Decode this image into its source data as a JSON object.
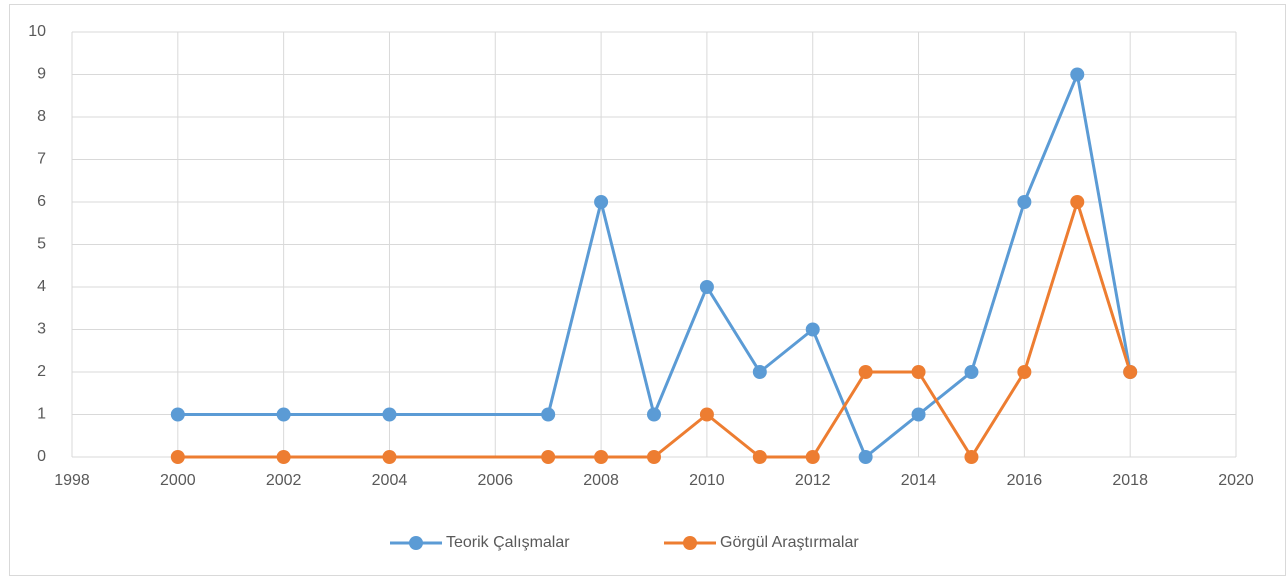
{
  "chart_data": {
    "type": "line",
    "x": [
      2000,
      2002,
      2004,
      2007,
      2008,
      2009,
      2010,
      2011,
      2012,
      2013,
      2014,
      2015,
      2016,
      2017,
      2018
    ],
    "series": [
      {
        "name": "Teorik Çalışmalar",
        "color": "#5b9bd5",
        "values": [
          1,
          1,
          1,
          1,
          6,
          1,
          4,
          2,
          3,
          0,
          1,
          2,
          6,
          9,
          2
        ]
      },
      {
        "name": "Görgül Araştırmalar",
        "color": "#ed7d31",
        "values": [
          0,
          0,
          0,
          0,
          0,
          0,
          1,
          0,
          0,
          2,
          2,
          0,
          2,
          6,
          2
        ]
      }
    ],
    "xlim": [
      1998,
      2020
    ],
    "xticks": [
      1998,
      2000,
      2002,
      2004,
      2006,
      2008,
      2010,
      2012,
      2014,
      2016,
      2018,
      2020
    ],
    "ylim": [
      0,
      10
    ],
    "yticks": [
      0,
      1,
      2,
      3,
      4,
      5,
      6,
      7,
      8,
      9,
      10
    ],
    "grid": true,
    "legend": "bottom"
  }
}
